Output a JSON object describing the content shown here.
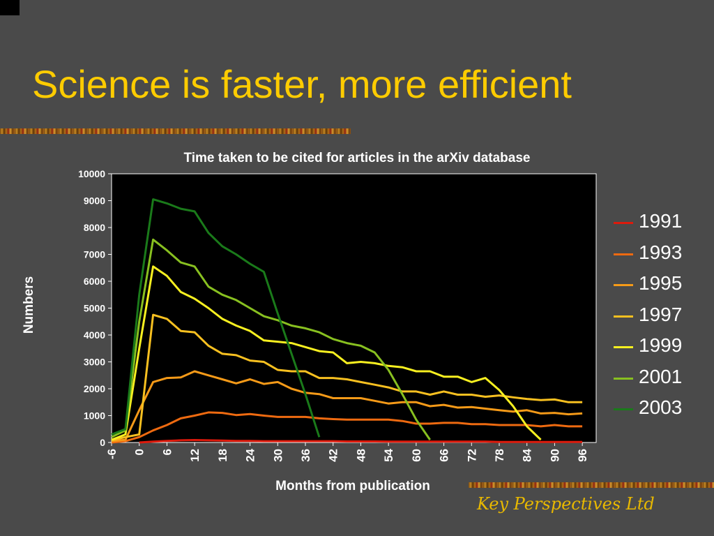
{
  "slide": {
    "title": "Science is faster, more efficient",
    "footer": "Key Perspectives Ltd"
  },
  "chart_data": {
    "type": "line",
    "title": "Time taken to be cited for articles in the arXiv database",
    "xlabel": "Months from publication",
    "ylabel": "Numbers",
    "xlim": [
      -6,
      99
    ],
    "ylim": [
      0,
      10000
    ],
    "x_ticks": [
      -6,
      0,
      6,
      12,
      18,
      24,
      30,
      36,
      42,
      48,
      54,
      60,
      66,
      72,
      78,
      84,
      90,
      96
    ],
    "y_ticks": [
      0,
      1000,
      2000,
      3000,
      4000,
      5000,
      6000,
      7000,
      8000,
      9000,
      10000
    ],
    "grid": false,
    "legend_position": "right",
    "series": [
      {
        "name": "1991",
        "color": "#dd1a0c",
        "x": [
          0,
          3,
          6,
          9,
          12,
          15,
          18,
          21,
          24,
          27,
          30,
          33,
          36,
          39,
          42,
          45,
          48,
          51,
          54,
          57,
          60,
          63,
          66,
          69,
          72,
          75,
          78,
          81,
          84,
          87,
          90,
          93,
          96
        ],
        "y": [
          0,
          30,
          60,
          80,
          90,
          80,
          70,
          60,
          60,
          50,
          50,
          50,
          50,
          50,
          50,
          40,
          40,
          40,
          30,
          30,
          30,
          30,
          30,
          30,
          30,
          30,
          20,
          20,
          20,
          20,
          20,
          20,
          20
        ]
      },
      {
        "name": "1993",
        "color": "#ee6a10",
        "x": [
          -6,
          -3,
          0,
          3,
          6,
          9,
          12,
          15,
          18,
          21,
          24,
          27,
          30,
          33,
          36,
          39,
          42,
          45,
          48,
          51,
          54,
          57,
          60,
          63,
          66,
          69,
          72,
          75,
          78,
          81,
          84,
          87,
          90,
          93,
          96
        ],
        "y": [
          0,
          50,
          200,
          450,
          650,
          900,
          1000,
          1120,
          1100,
          1020,
          1060,
          1000,
          950,
          950,
          950,
          900,
          870,
          850,
          850,
          850,
          850,
          800,
          700,
          700,
          730,
          730,
          680,
          680,
          650,
          650,
          650,
          600,
          650,
          600,
          600
        ]
      },
      {
        "name": "1995",
        "color": "#f59a18",
        "x": [
          -6,
          -3,
          0,
          3,
          6,
          9,
          12,
          15,
          18,
          21,
          24,
          27,
          30,
          33,
          36,
          39,
          42,
          45,
          48,
          51,
          54,
          57,
          60,
          63,
          66,
          69,
          72,
          75,
          78,
          81,
          84,
          87,
          90,
          93,
          96
        ],
        "y": [
          50,
          100,
          1200,
          2250,
          2400,
          2420,
          2650,
          2500,
          2350,
          2200,
          2350,
          2180,
          2250,
          2000,
          1850,
          1800,
          1650,
          1650,
          1650,
          1550,
          1450,
          1500,
          1500,
          1350,
          1400,
          1300,
          1320,
          1260,
          1200,
          1150,
          1200,
          1080,
          1100,
          1050,
          1080
        ]
      },
      {
        "name": "1997",
        "color": "#f8c020",
        "x": [
          -6,
          -3,
          0,
          3,
          6,
          9,
          12,
          15,
          18,
          21,
          24,
          27,
          30,
          33,
          36,
          39,
          42,
          45,
          48,
          51,
          54,
          57,
          60,
          63,
          66,
          69,
          72,
          75,
          78,
          81,
          84,
          87,
          90,
          93,
          96
        ],
        "y": [
          80,
          200,
          300,
          4750,
          4600,
          4150,
          4100,
          3600,
          3300,
          3250,
          3050,
          3000,
          2700,
          2650,
          2650,
          2400,
          2400,
          2350,
          2250,
          2150,
          2050,
          1900,
          1900,
          1780,
          1900,
          1780,
          1780,
          1700,
          1750,
          1680,
          1620,
          1580,
          1600,
          1500,
          1500
        ]
      },
      {
        "name": "1999",
        "color": "#f8f020",
        "x": [
          -6,
          -3,
          0,
          3,
          6,
          9,
          12,
          15,
          18,
          21,
          24,
          27,
          30,
          33,
          36,
          39,
          42,
          45,
          48,
          51,
          54,
          57,
          60,
          63,
          66,
          69,
          72,
          75,
          78,
          81,
          84,
          87
        ],
        "y": [
          100,
          300,
          3500,
          6550,
          6200,
          5600,
          5350,
          5000,
          4600,
          4350,
          4150,
          3800,
          3750,
          3700,
          3550,
          3400,
          3350,
          2950,
          3000,
          2950,
          2850,
          2800,
          2650,
          2650,
          2450,
          2450,
          2250,
          2400,
          1950,
          1350,
          600,
          100
        ]
      },
      {
        "name": "2001",
        "color": "#88c020",
        "x": [
          -6,
          -3,
          0,
          3,
          6,
          9,
          12,
          15,
          18,
          21,
          24,
          27,
          30,
          33,
          36,
          39,
          42,
          45,
          48,
          51,
          54,
          57,
          60,
          63
        ],
        "y": [
          200,
          450,
          4500,
          7550,
          7150,
          6700,
          6550,
          5800,
          5500,
          5300,
          5000,
          4700,
          4550,
          4350,
          4250,
          4100,
          3850,
          3700,
          3600,
          3350,
          2700,
          1800,
          850,
          100
        ]
      },
      {
        "name": "2003",
        "color": "#1a7a1a",
        "x": [
          -6,
          -3,
          0,
          3,
          6,
          9,
          12,
          15,
          18,
          21,
          24,
          27,
          30,
          33,
          36,
          39
        ],
        "y": [
          300,
          500,
          5500,
          9050,
          8900,
          8700,
          8600,
          7800,
          7300,
          7000,
          6650,
          6350,
          4800,
          3300,
          1800,
          200
        ]
      }
    ]
  }
}
